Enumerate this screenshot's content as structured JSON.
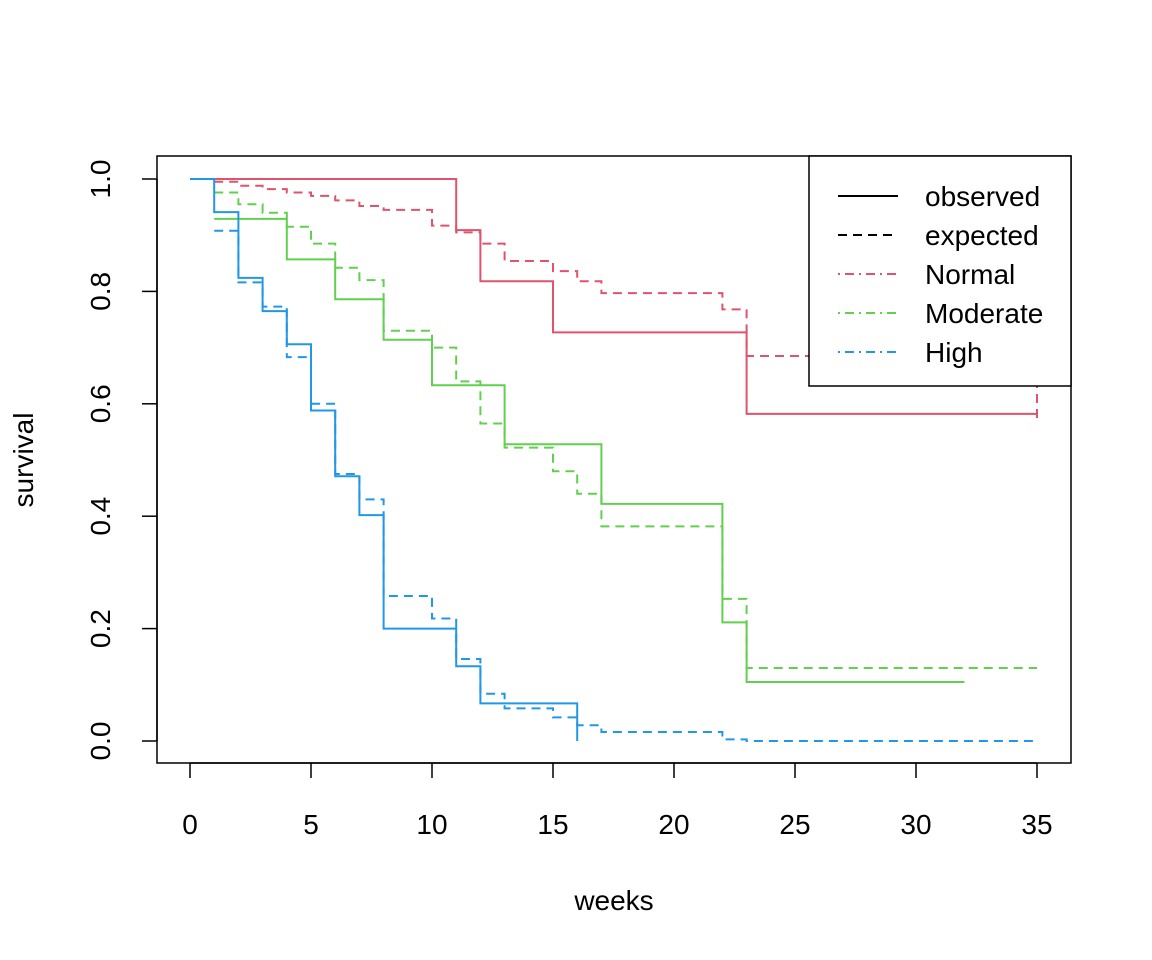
{
  "chart_data": {
    "type": "line",
    "subtype": "step",
    "title": "",
    "xlabel": "weeks",
    "ylabel": "survival",
    "xlim": [
      0,
      35
    ],
    "ylim": [
      0,
      1
    ],
    "xticks": [
      0,
      5,
      10,
      15,
      20,
      25,
      30,
      35
    ],
    "yticks": [
      0.0,
      0.2,
      0.4,
      0.6,
      0.8,
      1.0
    ],
    "ytick_labels": [
      "0.0",
      "0.2",
      "0.4",
      "0.6",
      "0.8",
      "1.0"
    ],
    "grid": false,
    "legend": {
      "position": "top-right",
      "entries": [
        {
          "label": "observed",
          "color": "#000000",
          "linestyle": "solid"
        },
        {
          "label": "expected",
          "color": "#000000",
          "linestyle": "dashed"
        },
        {
          "label": "Normal",
          "color": "#DF536B",
          "linestyle": "dotdash"
        },
        {
          "label": "Moderate",
          "color": "#61D04F",
          "linestyle": "dotdash"
        },
        {
          "label": "High",
          "color": "#2297E6",
          "linestyle": "dotdash"
        }
      ]
    },
    "series": [
      {
        "group": "Normal",
        "kind": "observed",
        "color": "#DF536B",
        "linestyle": "solid",
        "x": [
          0,
          11,
          12,
          15,
          23,
          35
        ],
        "y": [
          1.0,
          0.909,
          0.818,
          0.727,
          0.582,
          0.582
        ]
      },
      {
        "group": "Normal",
        "kind": "expected",
        "color": "#DF536B",
        "linestyle": "dashed",
        "x": [
          1,
          2,
          3,
          4,
          5,
          6,
          7,
          8,
          10,
          11,
          12,
          13,
          15,
          16,
          17,
          22,
          23,
          35
        ],
        "y": [
          0.995,
          0.988,
          0.982,
          0.976,
          0.97,
          0.962,
          0.952,
          0.945,
          0.917,
          0.905,
          0.885,
          0.854,
          0.836,
          0.818,
          0.797,
          0.768,
          0.685,
          0.571
        ]
      },
      {
        "group": "Moderate",
        "kind": "observed",
        "color": "#61D04F",
        "linestyle": "solid",
        "x": [
          1,
          4,
          6,
          8,
          10,
          13,
          17,
          22,
          23,
          32
        ],
        "y": [
          0.929,
          0.857,
          0.786,
          0.714,
          0.633,
          0.528,
          0.422,
          0.211,
          0.105,
          0.105
        ]
      },
      {
        "group": "Moderate",
        "kind": "expected",
        "color": "#61D04F",
        "linestyle": "dashed",
        "x": [
          1,
          2,
          3,
          4,
          5,
          6,
          7,
          8,
          10,
          11,
          12,
          13,
          15,
          16,
          17,
          22,
          23,
          35
        ],
        "y": [
          0.976,
          0.955,
          0.94,
          0.915,
          0.885,
          0.842,
          0.82,
          0.73,
          0.7,
          0.64,
          0.565,
          0.522,
          0.48,
          0.44,
          0.382,
          0.253,
          0.13,
          0.13
        ]
      },
      {
        "group": "High",
        "kind": "observed",
        "color": "#2297E6",
        "linestyle": "solid",
        "x": [
          0,
          1,
          2,
          3,
          4,
          5,
          6,
          7,
          8,
          11,
          12,
          16
        ],
        "y": [
          1.0,
          0.941,
          0.824,
          0.765,
          0.706,
          0.588,
          0.471,
          0.402,
          0.2,
          0.133,
          0.067,
          0.0
        ]
      },
      {
        "group": "High",
        "kind": "expected",
        "color": "#2297E6",
        "linestyle": "dashed",
        "x": [
          1,
          2,
          3,
          4,
          5,
          6,
          7,
          8,
          10,
          11,
          12,
          13,
          15,
          16,
          17,
          22,
          23,
          35
        ],
        "y": [
          0.908,
          0.816,
          0.773,
          0.683,
          0.6,
          0.475,
          0.43,
          0.258,
          0.218,
          0.146,
          0.084,
          0.058,
          0.042,
          0.028,
          0.016,
          0.003,
          0.0,
          0.0
        ]
      }
    ]
  }
}
